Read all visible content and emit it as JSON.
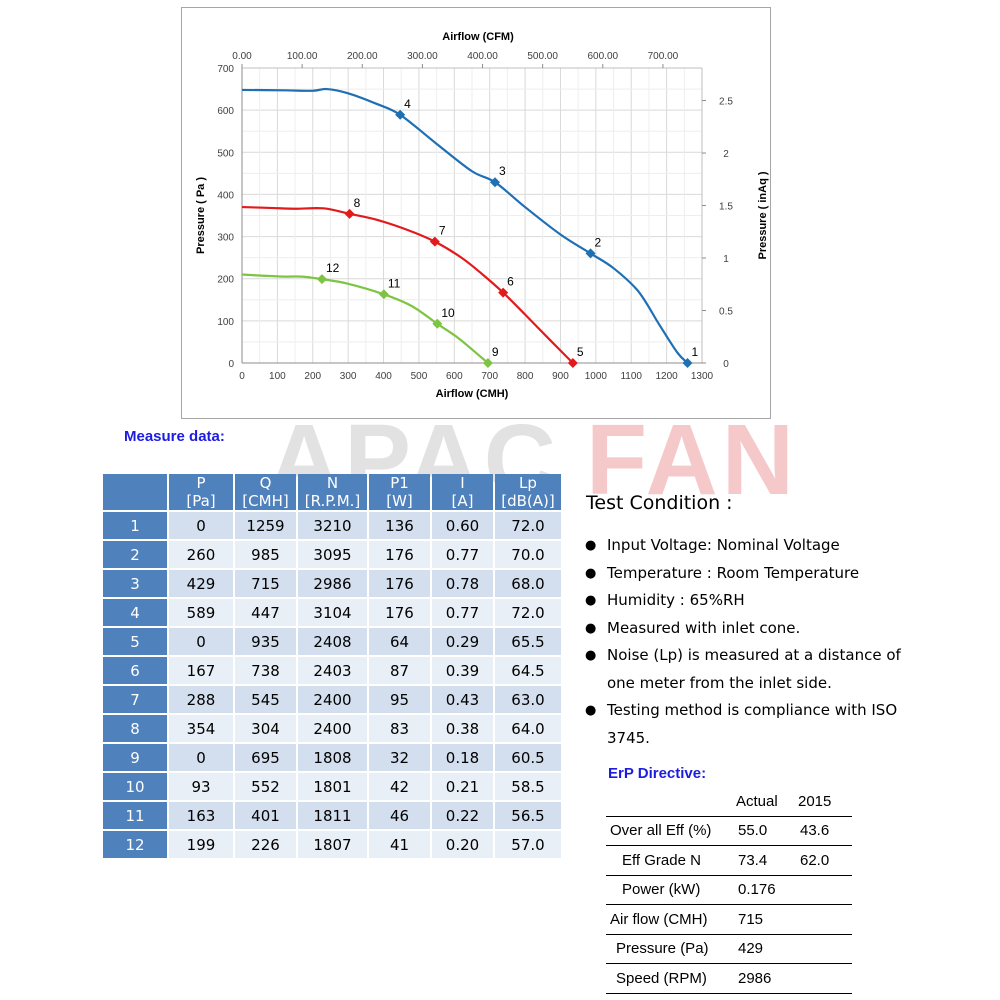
{
  "chart_data": {
    "type": "line",
    "title": "",
    "xlabel": "Airflow (CMH)",
    "x2label": "Airflow (CFM)",
    "ylabel": "Pressure ( Pa )",
    "y2label": "Pressure ( inAq )",
    "xlim": [
      0,
      1300
    ],
    "ylim": [
      0,
      700
    ],
    "x2lim": [
      0,
      765
    ],
    "y2lim": [
      0,
      2.81
    ],
    "x_ticks": [
      "0",
      "100",
      "200",
      "300",
      "400",
      "500",
      "600",
      "700",
      "800",
      "900",
      "1000",
      "1100",
      "1200",
      "1300"
    ],
    "y_ticks": [
      "0",
      "100",
      "200",
      "300",
      "400",
      "500",
      "600",
      "700"
    ],
    "x2_ticks": [
      {
        "label": "0.00",
        "value": 0
      },
      {
        "label": "100.00",
        "value": 100
      },
      {
        "label": "200.00",
        "value": 200
      },
      {
        "label": "300.00",
        "value": 300
      },
      {
        "label": "400.00",
        "value": 400
      },
      {
        "label": "500.00",
        "value": 500
      },
      {
        "label": "600.00",
        "value": 600
      },
      {
        "label": "700.00",
        "value": 700
      }
    ],
    "y2_ticks": [
      {
        "label": "0",
        "value": 0
      },
      {
        "label": "0.5",
        "value": 0.5
      },
      {
        "label": "1",
        "value": 1
      },
      {
        "label": "1.5",
        "value": 1.5
      },
      {
        "label": "2",
        "value": 2
      },
      {
        "label": "2.5",
        "value": 2.5
      }
    ],
    "grid": true,
    "series": [
      {
        "color": "#1f6fb5",
        "curve": [
          [
            0,
            648
          ],
          [
            120,
            647
          ],
          [
            200,
            646
          ],
          [
            240,
            650
          ],
          [
            300,
            640
          ],
          [
            380,
            615
          ],
          [
            447,
            589
          ],
          [
            550,
            520
          ],
          [
            650,
            455
          ],
          [
            715,
            429
          ],
          [
            800,
            370
          ],
          [
            900,
            305
          ],
          [
            985,
            260
          ],
          [
            1050,
            225
          ],
          [
            1120,
            170
          ],
          [
            1180,
            90
          ],
          [
            1230,
            25
          ],
          [
            1259,
            0
          ]
        ],
        "points": [
          {
            "label": "1",
            "x": 1259,
            "y": 0
          },
          {
            "label": "2",
            "x": 985,
            "y": 260
          },
          {
            "label": "3",
            "x": 715,
            "y": 429
          },
          {
            "label": "4",
            "x": 447,
            "y": 589
          }
        ]
      },
      {
        "color": "#e31a1c",
        "curve": [
          [
            0,
            370
          ],
          [
            80,
            368
          ],
          [
            150,
            366
          ],
          [
            230,
            367
          ],
          [
            304,
            354
          ],
          [
            380,
            340
          ],
          [
            470,
            315
          ],
          [
            545,
            288
          ],
          [
            620,
            250
          ],
          [
            680,
            210
          ],
          [
            738,
            167
          ],
          [
            800,
            115
          ],
          [
            870,
            55
          ],
          [
            935,
            0
          ]
        ],
        "points": [
          {
            "label": "5",
            "x": 935,
            "y": 0
          },
          {
            "label": "6",
            "x": 738,
            "y": 167
          },
          {
            "label": "7",
            "x": 545,
            "y": 288
          },
          {
            "label": "8",
            "x": 304,
            "y": 354
          }
        ]
      },
      {
        "color": "#7dc443",
        "curve": [
          [
            0,
            210
          ],
          [
            60,
            207
          ],
          [
            120,
            205
          ],
          [
            170,
            205
          ],
          [
            226,
            199
          ],
          [
            300,
            188
          ],
          [
            401,
            163
          ],
          [
            480,
            135
          ],
          [
            552,
            93
          ],
          [
            610,
            60
          ],
          [
            660,
            25
          ],
          [
            695,
            0
          ]
        ],
        "points": [
          {
            "label": "9",
            "x": 695,
            "y": 0
          },
          {
            "label": "10",
            "x": 552,
            "y": 93
          },
          {
            "label": "11",
            "x": 401,
            "y": 163
          },
          {
            "label": "12",
            "x": 226,
            "y": 199
          }
        ]
      }
    ]
  },
  "watermark": {
    "part1": "APAC",
    "part2": "FAN"
  },
  "measure": {
    "title": "Measure data:",
    "headers": [
      {
        "name": "P",
        "unit": "[Pa]"
      },
      {
        "name": "Q",
        "unit": "[CMH]"
      },
      {
        "name": "N",
        "unit": "[R.P.M.]"
      },
      {
        "name": "P1",
        "unit": "[W]"
      },
      {
        "name": "I",
        "unit": "[A]"
      },
      {
        "name": "Lp",
        "unit": "[dB(A)]"
      }
    ],
    "rows": [
      [
        "1",
        "0",
        "1259",
        "3210",
        "136",
        "0.60",
        "72.0"
      ],
      [
        "2",
        "260",
        "985",
        "3095",
        "176",
        "0.77",
        "70.0"
      ],
      [
        "3",
        "429",
        "715",
        "2986",
        "176",
        "0.78",
        "68.0"
      ],
      [
        "4",
        "589",
        "447",
        "3104",
        "176",
        "0.77",
        "72.0"
      ],
      [
        "5",
        "0",
        "935",
        "2408",
        "64",
        "0.29",
        "65.5"
      ],
      [
        "6",
        "167",
        "738",
        "2403",
        "87",
        "0.39",
        "64.5"
      ],
      [
        "7",
        "288",
        "545",
        "2400",
        "95",
        "0.43",
        "63.0"
      ],
      [
        "8",
        "354",
        "304",
        "2400",
        "83",
        "0.38",
        "64.0"
      ],
      [
        "9",
        "0",
        "695",
        "1808",
        "32",
        "0.18",
        "60.5"
      ],
      [
        "10",
        "93",
        "552",
        "1801",
        "42",
        "0.21",
        "58.5"
      ],
      [
        "11",
        "163",
        "401",
        "1811",
        "46",
        "0.22",
        "56.5"
      ],
      [
        "12",
        "199",
        "226",
        "1807",
        "41",
        "0.20",
        "57.0"
      ]
    ]
  },
  "test_condition": {
    "title": "Test Condition :",
    "items": [
      "Input Voltage: Nominal Voltage",
      "Temperature : Room Temperature",
      "Humidity : 65%RH",
      "Measured with inlet cone.",
      "Noise (Lp) is measured at a distance of one meter from the inlet side.",
      "Testing method is compliance with ISO 3745."
    ]
  },
  "erp": {
    "title": "ErP Directive:",
    "col_actual": "Actual",
    "col_2015": "2015",
    "rows": [
      {
        "label": "Over all Eff (%)",
        "actual": "55.0",
        "y2015": "43.6"
      },
      {
        "label": "Eff Grade N",
        "actual": "73.4",
        "y2015": "62.0"
      },
      {
        "label": "Power (kW)",
        "actual": "0.176",
        "y2015": ""
      },
      {
        "label": "Air flow (CMH)",
        "actual": "715",
        "y2015": ""
      },
      {
        "label": "Pressure (Pa)",
        "actual": "429",
        "y2015": ""
      },
      {
        "label": "Speed (RPM)",
        "actual": "2986",
        "y2015": ""
      }
    ]
  }
}
